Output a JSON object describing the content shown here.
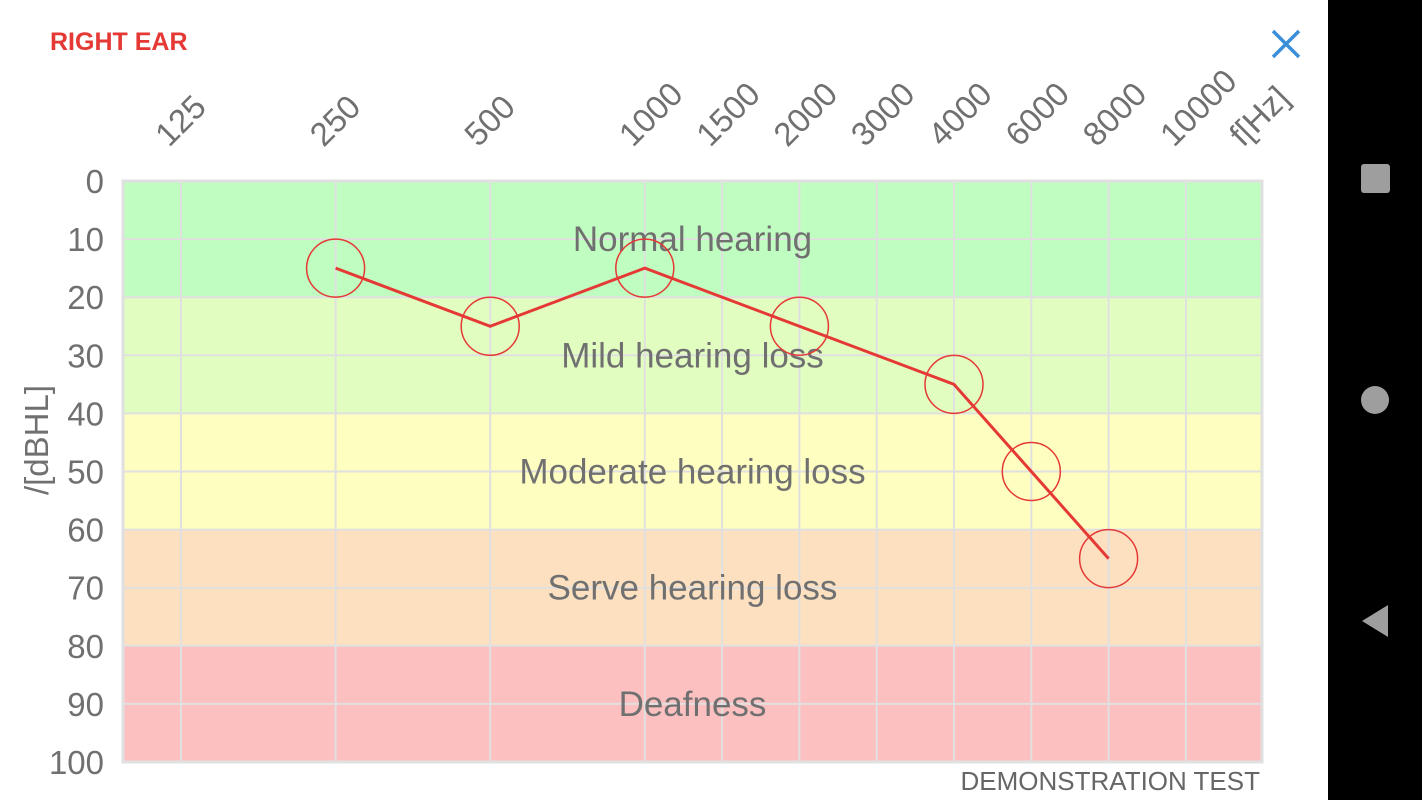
{
  "header": {
    "title": "RIGHT EAR",
    "close_icon": "close-icon",
    "close_color": "#3a8fd8"
  },
  "footer": {
    "note": "DEMONSTRATION TEST"
  },
  "nav": {
    "icons": [
      "recents-square-icon",
      "home-circle-icon",
      "back-triangle-icon"
    ]
  },
  "chart_data": {
    "type": "line",
    "x_tick_labels": [
      "125",
      "250",
      "500",
      "1000",
      "1500",
      "2000",
      "3000",
      "4000",
      "6000",
      "8000",
      "10000"
    ],
    "xlabel": "f[Hz]",
    "ylabel": "/[dBHL]",
    "y_tick_labels": [
      "0",
      "10",
      "20",
      "30",
      "40",
      "50",
      "60",
      "70",
      "80",
      "90",
      "100"
    ],
    "ylim": [
      0,
      100
    ],
    "y_inverted": true,
    "grid": true,
    "bands": [
      {
        "label": "Normal hearing",
        "from": 0,
        "to": 20,
        "color": "#c0fdc0"
      },
      {
        "label": "Mild hearing loss",
        "from": 20,
        "to": 40,
        "color": "#e1fec0"
      },
      {
        "label": "Moderate hearing loss",
        "from": 40,
        "to": 60,
        "color": "#fefec0"
      },
      {
        "label": "Serve hearing loss",
        "from": 60,
        "to": 80,
        "color": "#fde0c0"
      },
      {
        "label": "Deafness",
        "from": 80,
        "to": 100,
        "color": "#fdc0c0"
      }
    ],
    "series": [
      {
        "color": "#e53935",
        "x": [
          "250",
          "500",
          "1000",
          "2000",
          "4000",
          "6000",
          "8000"
        ],
        "y": [
          15,
          25,
          15,
          25,
          35,
          50,
          65
        ]
      }
    ]
  }
}
